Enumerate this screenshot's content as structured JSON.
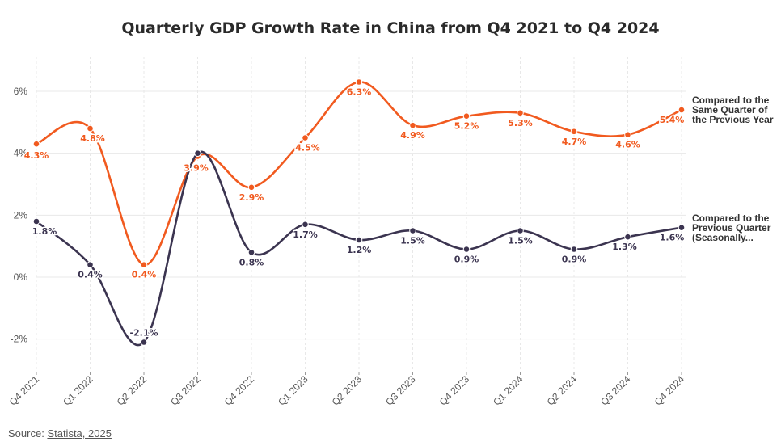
{
  "title": "Quarterly GDP Growth Rate in China from Q4 2021 to Q4 2024",
  "source": {
    "label": "Source:",
    "link_text": "Statista, 2025"
  },
  "colors": {
    "yoy": "#f15a1f",
    "qoq": "#3b3450",
    "grid": "#e8e8e8",
    "axis": "#555555"
  },
  "chart_data": {
    "type": "line",
    "title": "Quarterly GDP Growth Rate in China from Q4 2021 to Q4 2024",
    "categories": [
      "Q4 2021",
      "Q1 2022",
      "Q2 2022",
      "Q3 2022",
      "Q4 2022",
      "Q1 2023",
      "Q2 2023",
      "Q3 2023",
      "Q4 2023",
      "Q1 2024",
      "Q2 2024",
      "Q3 2024",
      "Q4 2024"
    ],
    "ylim": [
      -3,
      7
    ],
    "yticks": [
      -2,
      0,
      2,
      4,
      6
    ],
    "ytick_labels": [
      "-2%",
      "0%",
      "2%",
      "4%",
      "6%"
    ],
    "series": [
      {
        "name": "Compared to the Same Quarter of the Previous Year",
        "legend_lines": [
          "Compared to the",
          "Same Quarter of",
          "the Previous Year"
        ],
        "color": "#f15a1f",
        "values": [
          4.3,
          4.8,
          0.4,
          3.9,
          2.9,
          4.5,
          6.3,
          4.9,
          5.2,
          5.3,
          4.7,
          4.6,
          5.4
        ],
        "labels": [
          "4.3%",
          "4.8%",
          "0.4%",
          "3.9%",
          "2.9%",
          "4.5%",
          "6.3%",
          "4.9%",
          "5.2%",
          "5.3%",
          "4.7%",
          "4.6%",
          "5.4%"
        ]
      },
      {
        "name": "Compared to the Previous Quarter (Seasonally...",
        "legend_lines": [
          "Compared to the",
          "Previous Quarter",
          "(Seasonally..."
        ],
        "color": "#3b3450",
        "values": [
          1.8,
          0.4,
          -2.1,
          4.0,
          0.8,
          1.7,
          1.2,
          1.5,
          0.9,
          1.5,
          0.9,
          1.3,
          1.6
        ],
        "labels": [
          "1.8%",
          "0.4%",
          "-2.1%",
          "",
          "0.8%",
          "1.7%",
          "1.2%",
          "1.5%",
          "0.9%",
          "1.5%",
          "0.9%",
          "1.3%",
          "1.6%"
        ]
      }
    ],
    "grid": true,
    "legend": "right"
  }
}
